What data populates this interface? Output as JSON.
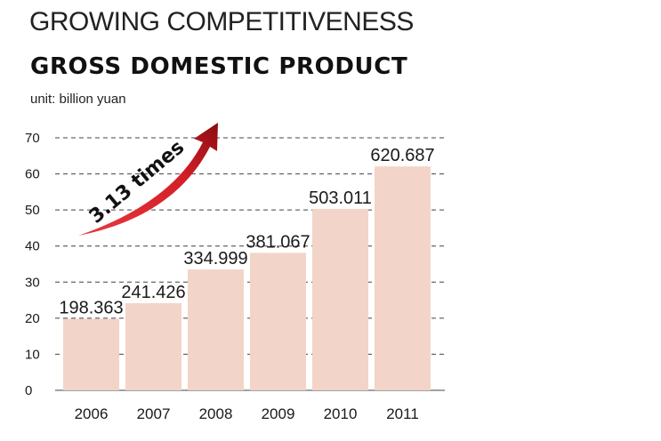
{
  "header": {
    "title": "GROWING COMPETITIVENESS",
    "subtitle": "GROSS DOMESTIC PRODUCT",
    "unit": "unit: billion yuan"
  },
  "colors": {
    "bar": "#f2d4c8",
    "arrow_light": "#e8383f",
    "arrow_dark": "#8c0c12",
    "gridline": "#444444",
    "text": "#1a1a1a"
  },
  "chart_data": {
    "type": "bar",
    "title": "GROSS DOMESTIC PRODUCT",
    "ylabel": "unit: billion yuan",
    "xlabel": "",
    "categories": [
      "2006",
      "2007",
      "2008",
      "2009",
      "2010",
      "2011"
    ],
    "values": [
      198.363,
      241.426,
      334.999,
      381.067,
      503.011,
      620.687
    ],
    "data_labels": [
      "198.363",
      "241.426",
      "334.999",
      "381.067",
      "503.011",
      "620.687"
    ],
    "axis_scale_divisor": 10,
    "ylim": [
      0,
      70
    ],
    "yticks": [
      "0",
      "10",
      "20",
      "30",
      "40",
      "50",
      "60",
      "70"
    ],
    "grid": true,
    "grid_style": "dashed",
    "annotation": {
      "text": "3.13 times",
      "icon": "growth-arrow-icon"
    }
  }
}
